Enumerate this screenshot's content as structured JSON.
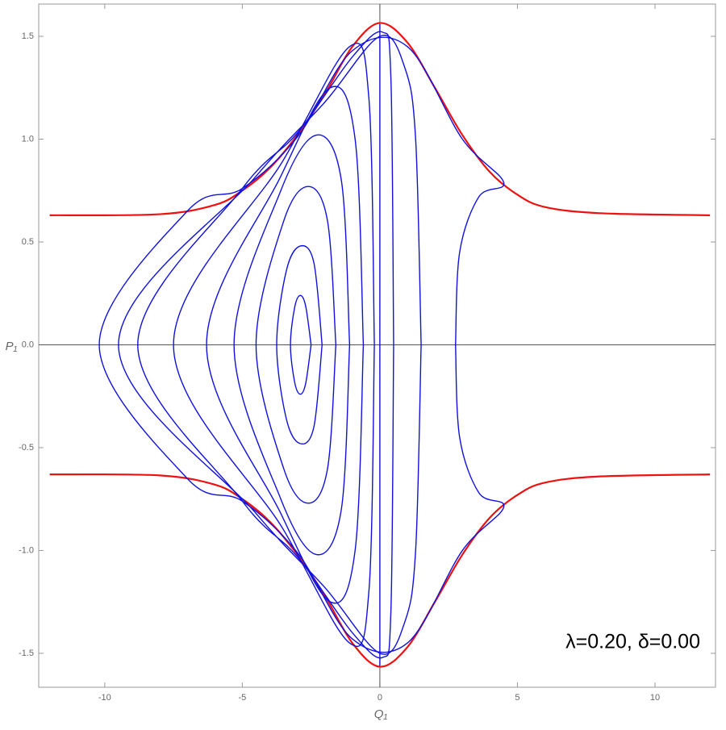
{
  "chart_data": {
    "type": "line",
    "xlabel": "Q₁",
    "ylabel": "P₁",
    "annotation": "λ=0.20, δ=0.00",
    "xlim": [
      -12.4,
      12.2
    ],
    "ylim": [
      -1.665,
      1.657
    ],
    "xticks": [
      -10,
      -5,
      0,
      5,
      10
    ],
    "yticks": [
      -1.5,
      {
        "value": -1,
        "label": "-1.0"
      },
      -0.5,
      {
        "value": 0,
        "label": "0.0"
      },
      0.5,
      {
        "value": 1,
        "label": "1.0"
      },
      1.5
    ],
    "series": [
      {
        "color": "#ee1111",
        "x": [
          -12,
          -8,
          -6,
          -5,
          -4,
          -3,
          -2,
          -1,
          0,
          1,
          2,
          3,
          4,
          5,
          6,
          8,
          12
        ],
        "values": [
          0.63,
          0.635,
          0.68,
          0.75,
          0.86,
          1.02,
          1.22,
          1.45,
          1.565,
          1.47,
          1.25,
          1.02,
          0.84,
          0.73,
          0.67,
          0.64,
          0.63
        ]
      },
      {
        "color": "#ee1111",
        "x": [
          -12,
          -8,
          -6,
          -5,
          -4,
          -3,
          -2,
          -1,
          0,
          1,
          2,
          3,
          4,
          5,
          6,
          8,
          12
        ],
        "values": [
          -0.63,
          -0.635,
          -0.68,
          -0.75,
          -0.86,
          -1.02,
          -1.22,
          -1.45,
          -1.565,
          -1.47,
          -1.25,
          -1.02,
          -0.84,
          -0.73,
          -0.67,
          -0.64,
          -0.63
        ]
      },
      {
        "color": "#1111dd",
        "x": [
          -2.5,
          -2.7,
          -2.9,
          -3.1,
          -3.25,
          -3.1,
          -2.9,
          -2.7,
          -2.5
        ],
        "values": [
          0,
          0.19,
          0.24,
          0.18,
          0,
          -0.18,
          -0.24,
          -0.19,
          0
        ]
      },
      {
        "color": "#1111dd",
        "x": [
          -2.1,
          -2.4,
          -2.9,
          -3.4,
          -3.75,
          -3.4,
          -2.9,
          -2.4,
          -2.1
        ],
        "values": [
          0,
          0.4,
          0.48,
          0.36,
          0,
          -0.36,
          -0.48,
          -0.4,
          0
        ]
      },
      {
        "color": "#1111dd",
        "x": [
          -1.6,
          -1.9,
          -2.6,
          -3.5,
          -4.5,
          -3.5,
          -2.6,
          -1.9,
          -1.6
        ],
        "values": [
          0,
          0.6,
          0.77,
          0.6,
          0,
          -0.6,
          -0.77,
          -0.6,
          0
        ]
      },
      {
        "color": "#1111dd",
        "x": [
          -1.1,
          -1.4,
          -2.3,
          -3.6,
          -5.3,
          -3.6,
          -2.3,
          -1.4,
          -1.1
        ],
        "values": [
          0,
          0.8,
          1.02,
          0.75,
          0,
          -0.75,
          -1.02,
          -0.8,
          0
        ]
      },
      {
        "color": "#1111dd",
        "x": [
          -0.6,
          -0.9,
          -1.8,
          -3.6,
          -6.3,
          -3.6,
          -1.8,
          -0.9,
          -0.6
        ],
        "values": [
          0,
          1.0,
          1.25,
          0.82,
          0,
          -0.82,
          -1.25,
          -1.0,
          0
        ]
      },
      {
        "color": "#1111dd",
        "x": [
          -0.2,
          -0.4,
          -1.1,
          -3.5,
          -7.5,
          -3.5,
          -1.1,
          -0.4,
          -0.2
        ],
        "values": [
          0,
          1.2,
          1.45,
          0.9,
          0,
          -0.9,
          -1.45,
          -1.2,
          0
        ]
      },
      {
        "color": "#1111dd",
        "x": [
          0.5,
          0.4,
          0.1,
          -1,
          -3,
          -5,
          -8.8,
          -5,
          -3,
          -1,
          0.1,
          0.4,
          0.5
        ],
        "values": [
          0,
          1.3,
          1.52,
          1.4,
          1.03,
          0.76,
          0,
          -0.76,
          -1.03,
          -1.4,
          -1.52,
          -1.3,
          0
        ]
      },
      {
        "color": "#1111dd",
        "x": [
          1.5,
          1.3,
          0.9,
          0,
          -2,
          -4.5,
          -9.5,
          -4.5,
          -2,
          0,
          0.9,
          1.3,
          1.5
        ],
        "values": [
          0,
          1.0,
          1.35,
          1.5,
          1.18,
          0.82,
          0,
          -0.82,
          -1.18,
          -1.5,
          -1.35,
          -1.0,
          0
        ]
      },
      {
        "color": "#1111dd",
        "x": [
          2.75,
          2.9,
          3.6,
          4.5,
          3,
          1,
          -1,
          -3,
          -5,
          -7,
          -10.2,
          -7,
          -5,
          -3,
          -1,
          1,
          3,
          4.5,
          3.6,
          2.9,
          2.75
        ],
        "values": [
          0,
          0.45,
          0.72,
          0.79,
          1.0,
          1.45,
          1.43,
          1.01,
          0.76,
          0.65,
          0,
          -0.65,
          -0.76,
          -1.01,
          -1.43,
          -1.45,
          -1.0,
          -0.79,
          -0.72,
          -0.45,
          0
        ]
      },
      {
        "color": "#1111dd",
        "x": [
          0,
          0
        ],
        "values": [
          -1.56,
          1.56
        ]
      }
    ]
  }
}
